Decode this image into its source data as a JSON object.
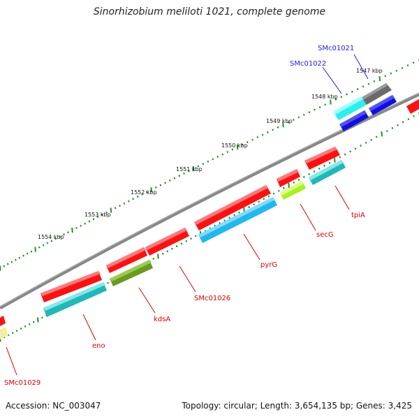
{
  "title": "Sinorhizobium meliloti 1021, complete genome",
  "footer": {
    "accession": "Accession: NC_003047",
    "summary": "Topology: circular; Length: 3,654,135 bp; Genes: 3,425"
  },
  "ruler": {
    "ticks": [
      {
        "label": "1547 kbp"
      },
      {
        "label": "1548 kbp"
      },
      {
        "label": "1549 kbp"
      },
      {
        "label": "1550 kbp"
      },
      {
        "label": "1551 kbp"
      },
      {
        "label": "1552 kbp"
      },
      {
        "label": "1553 kbp"
      },
      {
        "label": "1554 kbp"
      }
    ]
  },
  "genes": [
    {
      "name": "SMc01021",
      "color": "#1a1aff"
    },
    {
      "name": "SMc01022",
      "color": "#1a1aff"
    },
    {
      "name": "tpiA",
      "color": "#e00000"
    },
    {
      "name": "secG",
      "color": "#e00000"
    },
    {
      "name": "pyrG",
      "color": "#e00000"
    },
    {
      "name": "SMc01026",
      "color": "#e00000"
    },
    {
      "name": "kdsA",
      "color": "#e00000"
    },
    {
      "name": "eno",
      "color": "#e00000"
    },
    {
      "name": "SMc01029",
      "color": "#e00000"
    }
  ],
  "colors": {
    "backbone": "#888888",
    "tick_marks": "#2a8a2a",
    "red_feature": "#ff1010",
    "cyan_feature": "#20c8c8",
    "sky_feature": "#20b8f0",
    "olive_feature": "#6a9a20",
    "lime_feature": "#a8f020",
    "gray_feature": "#707070",
    "blue_feature": "#1010e0",
    "pale_yellow_feature": "#f0f0a0"
  }
}
